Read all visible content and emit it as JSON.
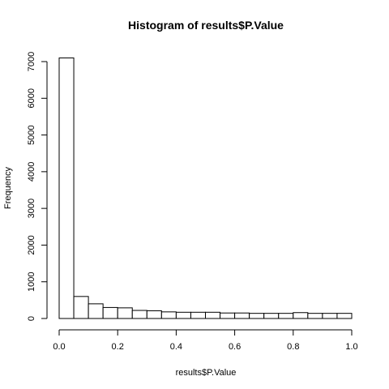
{
  "chart_data": {
    "type": "bar",
    "title": "Histogram of results$P.Value",
    "xlabel": "results$P.Value",
    "ylabel": "Frequency",
    "bin_edges": [
      0.0,
      0.05,
      0.1,
      0.15,
      0.2,
      0.25,
      0.3,
      0.35,
      0.4,
      0.45,
      0.5,
      0.55,
      0.6,
      0.65,
      0.7,
      0.75,
      0.8,
      0.85,
      0.9,
      0.95,
      1.0
    ],
    "values": [
      7100,
      600,
      400,
      300,
      290,
      220,
      210,
      180,
      170,
      170,
      170,
      150,
      150,
      140,
      140,
      140,
      160,
      140,
      140,
      140
    ],
    "xlim": [
      0,
      1
    ],
    "ylim": [
      0,
      7000
    ],
    "x_ticks": [
      0.0,
      0.2,
      0.4,
      0.6,
      0.8,
      1.0
    ],
    "x_tick_labels": [
      "0.0",
      "0.2",
      "0.4",
      "0.6",
      "0.8",
      "1.0"
    ],
    "y_ticks": [
      0,
      1000,
      2000,
      3000,
      4000,
      5000,
      6000,
      7000
    ],
    "y_tick_labels": [
      "0",
      "1000",
      "2000",
      "3000",
      "4000",
      "5000",
      "6000",
      "7000"
    ],
    "grid": false,
    "legend": "none",
    "bar_fill": "#ffffff",
    "bar_stroke": "#000000"
  }
}
